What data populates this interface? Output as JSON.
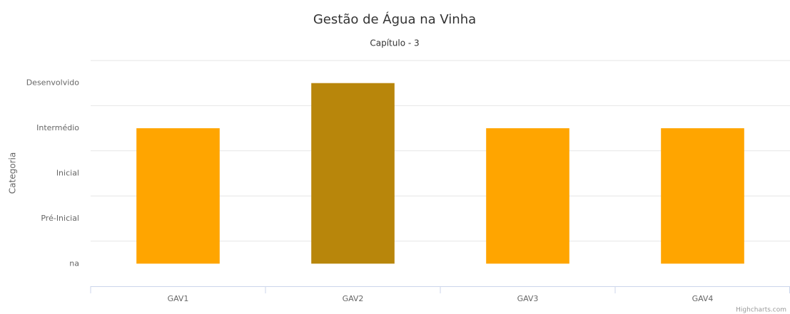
{
  "chart_data": {
    "type": "bar",
    "title": "Gestão de Água na Vinha",
    "subtitle": "Capítulo - 3",
    "y_label": "Categoria",
    "categories": [
      "GAV1",
      "GAV2",
      "GAV3",
      "GAV4"
    ],
    "values": [
      3,
      4,
      3,
      3
    ],
    "colors": [
      "#ffa500",
      "#b8860b",
      "#ffa500",
      "#ffa500"
    ],
    "ylim": [
      -0.5,
      4.5
    ],
    "yticks": [
      {
        "value": 0,
        "label": "na"
      },
      {
        "value": 1,
        "label": "Pré-Inicial"
      },
      {
        "value": 2,
        "label": "Inicial"
      },
      {
        "value": 3,
        "label": "Intermédio"
      },
      {
        "value": 4,
        "label": "Desenvolvido"
      }
    ],
    "grid": true,
    "credits": "Highcharts.com"
  }
}
